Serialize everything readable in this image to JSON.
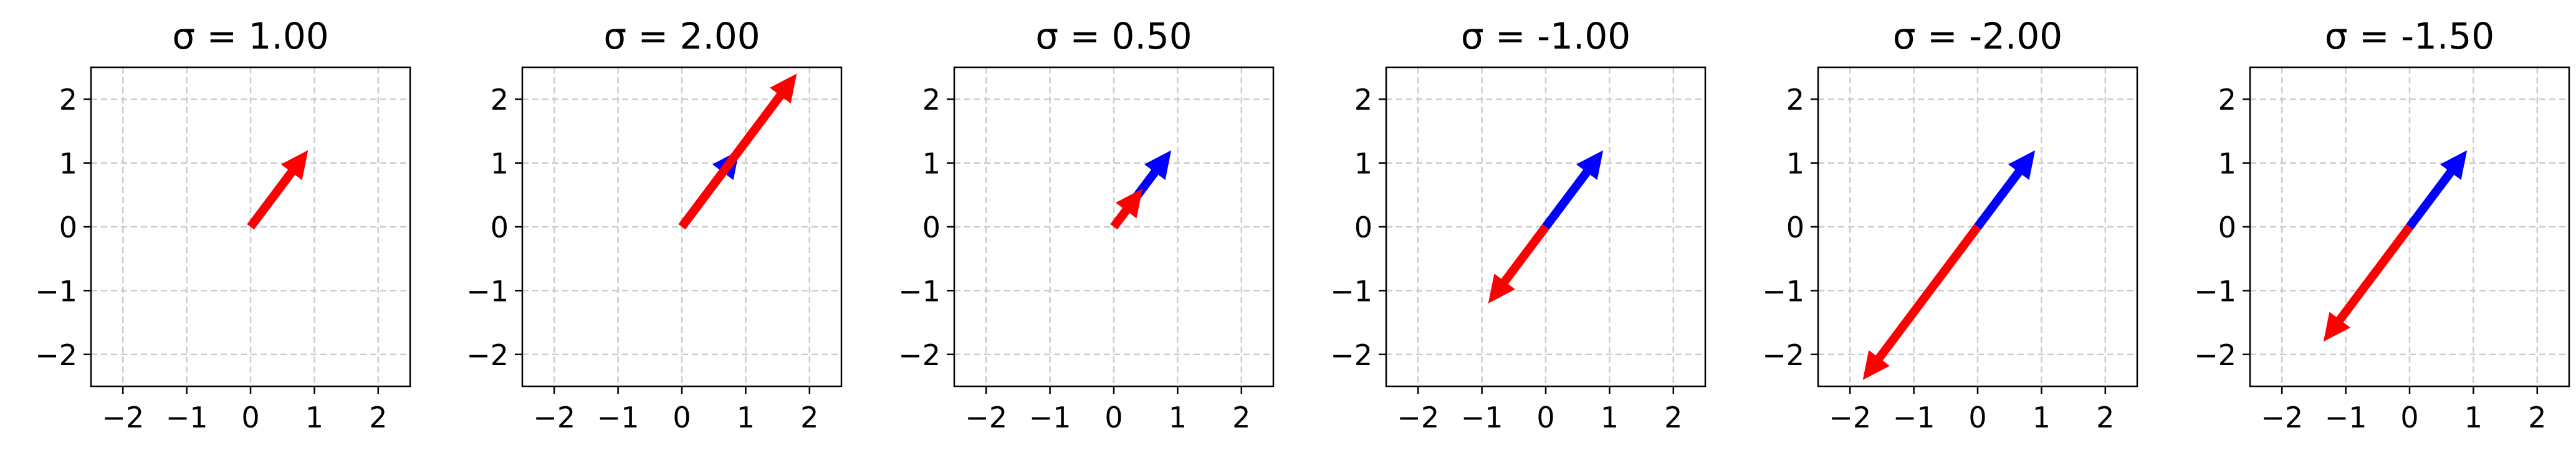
{
  "chart_data": [
    {
      "type": "quiver",
      "title": "σ = 1.00",
      "sigma": 1.0,
      "xlim": [
        -2.5,
        2.5
      ],
      "ylim": [
        -2.5,
        2.5
      ],
      "xticks": [
        "−2",
        "−1",
        "0",
        "1",
        "2"
      ],
      "yticks": [
        "2",
        "1",
        "0",
        "−1",
        "−2"
      ],
      "grid": true,
      "vectors": [
        {
          "color": "#0000ff",
          "origin": [
            0,
            0
          ],
          "components": [
            0.9,
            1.2
          ]
        },
        {
          "color": "#ff0000",
          "origin": [
            0,
            0
          ],
          "components": [
            0.9,
            1.2
          ]
        }
      ]
    },
    {
      "type": "quiver",
      "title": "σ = 2.00",
      "sigma": 2.0,
      "xlim": [
        -2.5,
        2.5
      ],
      "ylim": [
        -2.5,
        2.5
      ],
      "xticks": [
        "−2",
        "−1",
        "0",
        "1",
        "2"
      ],
      "yticks": [
        "2",
        "1",
        "0",
        "−1",
        "−2"
      ],
      "grid": true,
      "vectors": [
        {
          "color": "#0000ff",
          "origin": [
            0,
            0
          ],
          "components": [
            0.9,
            1.2
          ]
        },
        {
          "color": "#ff0000",
          "origin": [
            0,
            0
          ],
          "components": [
            1.8,
            2.4
          ]
        }
      ]
    },
    {
      "type": "quiver",
      "title": "σ = 0.50",
      "sigma": 0.5,
      "xlim": [
        -2.5,
        2.5
      ],
      "ylim": [
        -2.5,
        2.5
      ],
      "xticks": [
        "−2",
        "−1",
        "0",
        "1",
        "2"
      ],
      "yticks": [
        "2",
        "1",
        "0",
        "−1",
        "−2"
      ],
      "grid": true,
      "vectors": [
        {
          "color": "#0000ff",
          "origin": [
            0,
            0
          ],
          "components": [
            0.9,
            1.2
          ]
        },
        {
          "color": "#ff0000",
          "origin": [
            0,
            0
          ],
          "components": [
            0.45,
            0.6
          ]
        }
      ]
    },
    {
      "type": "quiver",
      "title": "σ = -1.00",
      "sigma": -1.0,
      "xlim": [
        -2.5,
        2.5
      ],
      "ylim": [
        -2.5,
        2.5
      ],
      "xticks": [
        "−2",
        "−1",
        "0",
        "1",
        "2"
      ],
      "yticks": [
        "2",
        "1",
        "0",
        "−1",
        "−2"
      ],
      "grid": true,
      "vectors": [
        {
          "color": "#0000ff",
          "origin": [
            0,
            0
          ],
          "components": [
            0.9,
            1.2
          ]
        },
        {
          "color": "#ff0000",
          "origin": [
            0,
            0
          ],
          "components": [
            -0.9,
            -1.2
          ]
        }
      ]
    },
    {
      "type": "quiver",
      "title": "σ = -2.00",
      "sigma": -2.0,
      "xlim": [
        -2.5,
        2.5
      ],
      "ylim": [
        -2.5,
        2.5
      ],
      "xticks": [
        "−2",
        "−1",
        "0",
        "1",
        "2"
      ],
      "yticks": [
        "2",
        "1",
        "0",
        "−1",
        "−2"
      ],
      "grid": true,
      "vectors": [
        {
          "color": "#0000ff",
          "origin": [
            0,
            0
          ],
          "components": [
            0.9,
            1.2
          ]
        },
        {
          "color": "#ff0000",
          "origin": [
            0,
            0
          ],
          "components": [
            -1.8,
            -2.4
          ]
        }
      ]
    },
    {
      "type": "quiver",
      "title": "σ = -1.50",
      "sigma": -1.5,
      "xlim": [
        -2.5,
        2.5
      ],
      "ylim": [
        -2.5,
        2.5
      ],
      "xticks": [
        "−2",
        "−1",
        "0",
        "1",
        "2"
      ],
      "yticks": [
        "2",
        "1",
        "0",
        "−1",
        "−2"
      ],
      "grid": true,
      "vectors": [
        {
          "color": "#0000ff",
          "origin": [
            0,
            0
          ],
          "components": [
            0.9,
            1.2
          ]
        },
        {
          "color": "#ff0000",
          "origin": [
            0,
            0
          ],
          "components": [
            -1.35,
            -1.8
          ]
        }
      ]
    }
  ]
}
